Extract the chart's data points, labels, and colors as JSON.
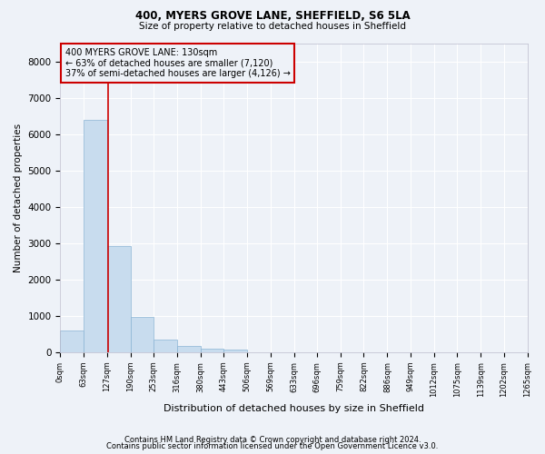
{
  "title1": "400, MYERS GROVE LANE, SHEFFIELD, S6 5LA",
  "title2": "Size of property relative to detached houses in Sheffield",
  "xlabel": "Distribution of detached houses by size in Sheffield",
  "ylabel": "Number of detached properties",
  "footnote1": "Contains HM Land Registry data © Crown copyright and database right 2024.",
  "footnote2": "Contains public sector information licensed under the Open Government Licence v3.0.",
  "annotation_line1": "400 MYERS GROVE LANE: 130sqm",
  "annotation_line2": "← 63% of detached houses are smaller (7,120)",
  "annotation_line3": "37% of semi-detached houses are larger (4,126) →",
  "bar_edges": [
    0,
    63,
    127,
    190,
    253,
    316,
    380,
    443,
    506,
    569,
    633,
    696,
    759,
    822,
    886,
    949,
    1012,
    1075,
    1139,
    1202,
    1265
  ],
  "bar_heights": [
    600,
    6400,
    2930,
    970,
    360,
    165,
    100,
    70,
    0,
    0,
    0,
    0,
    0,
    0,
    0,
    0,
    0,
    0,
    0,
    0
  ],
  "bar_color": "#c8dcee",
  "bar_edgecolor": "#8ab4d4",
  "property_line_x": 130,
  "annotation_box_color": "#cc0000",
  "background_color": "#eef2f8",
  "grid_color": "#ffffff",
  "ylim": [
    0,
    8500
  ],
  "yticks": [
    0,
    1000,
    2000,
    3000,
    4000,
    5000,
    6000,
    7000,
    8000
  ],
  "tick_labels": [
    "0sqm",
    "63sqm",
    "127sqm",
    "190sqm",
    "253sqm",
    "316sqm",
    "380sqm",
    "443sqm",
    "506sqm",
    "569sqm",
    "633sqm",
    "696sqm",
    "759sqm",
    "822sqm",
    "886sqm",
    "949sqm",
    "1012sqm",
    "1075sqm",
    "1139sqm",
    "1202sqm",
    "1265sqm"
  ]
}
